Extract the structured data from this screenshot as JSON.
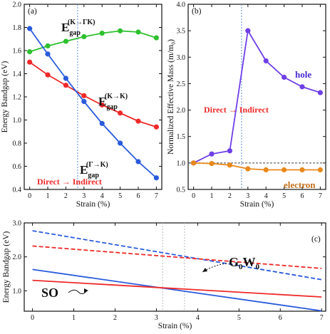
{
  "chart_data": [
    {
      "panel_label": "(a)",
      "type": "line",
      "xlabel": "Strain (%)",
      "ylabel": "Energy Bandgap (eV)",
      "xlim": [
        -0.3,
        7.3
      ],
      "ylim": [
        0.4,
        2.0
      ],
      "xticks": [
        0,
        1,
        2,
        3,
        4,
        5,
        6,
        7
      ],
      "yticks": [
        0.4,
        0.6,
        0.8,
        1.0,
        1.2,
        1.4,
        1.6,
        1.8,
        2.0
      ],
      "x": [
        0,
        1,
        2,
        3,
        4,
        5,
        6,
        7
      ],
      "series": [
        {
          "color": "#2ec02e",
          "values": [
            1.59,
            1.64,
            1.68,
            1.72,
            1.75,
            1.77,
            1.76,
            1.71
          ]
        },
        {
          "color": "#ee2a2a",
          "values": [
            1.5,
            1.39,
            1.3,
            1.21,
            1.13,
            1.06,
            0.99,
            0.94
          ]
        },
        {
          "color": "#2a5bdc",
          "values": [
            1.79,
            1.57,
            1.36,
            1.16,
            0.97,
            0.8,
            0.64,
            0.5
          ]
        }
      ],
      "vline_x": 2.65,
      "annotations": {
        "green": {
          "base": "E",
          "sub": "gap",
          "sup": "(K→ΓK)"
        },
        "red": {
          "base": "E",
          "sub": "gap",
          "sup": "(K→K)"
        },
        "blue": {
          "base": "E",
          "sub": "gap",
          "sup": "(Γ→K)"
        },
        "transition": {
          "left": "Direct",
          "right": "Indirect"
        }
      }
    },
    {
      "panel_label": "(b)",
      "type": "line",
      "xlabel": "Strain (%)",
      "ylabel": "Normalized Effective Mass (m/m₀)",
      "xlim": [
        -0.3,
        7.3
      ],
      "ylim": [
        0.5,
        4.0
      ],
      "xticks": [
        0,
        1,
        2,
        3,
        4,
        5,
        6,
        7
      ],
      "yticks": [
        0.5,
        1.0,
        1.5,
        2.0,
        2.5,
        3.0,
        3.5,
        4.0
      ],
      "x": [
        0,
        1,
        2,
        3,
        4,
        5,
        6,
        7
      ],
      "series": [
        {
          "name": "hole",
          "color": "#6f3fe6",
          "values": [
            1.0,
            1.17,
            1.23,
            3.5,
            2.93,
            2.62,
            2.44,
            2.33
          ]
        },
        {
          "name": "electron",
          "color": "#e9891c",
          "values": [
            1.0,
            0.99,
            0.96,
            0.89,
            0.87,
            0.87,
            0.87,
            0.87
          ]
        }
      ],
      "hline_y": 1.0,
      "vline_x": 2.65,
      "annotations": {
        "hole": "hole",
        "electron": "electron",
        "transition": {
          "left": "Direct",
          "right": "Indirect"
        }
      }
    },
    {
      "panel_label": "(c)",
      "type": "line",
      "xlabel": "Strain (%)",
      "ylabel": "Energy Bandgap (eV)",
      "xlim": [
        -0.2,
        7.1
      ],
      "ylim": [
        0.4,
        3.0
      ],
      "xticks": [
        0,
        1,
        2,
        3,
        4,
        5,
        6,
        7
      ],
      "yticks": [
        1.0,
        2.0,
        3.0
      ],
      "ytick_labels": [
        "1.0",
        "2.0",
        "3.0"
      ],
      "series": [
        {
          "color": "#2a5bdc",
          "dashed": true,
          "x": [
            0,
            7
          ],
          "values": [
            2.77,
            1.33
          ]
        },
        {
          "color": "#ee2a2a",
          "dashed": true,
          "x": [
            0,
            7
          ],
          "values": [
            2.32,
            1.66
          ]
        },
        {
          "color": "#2a5bdc",
          "dashed": false,
          "x": [
            0,
            7
          ],
          "values": [
            1.63,
            0.41
          ]
        },
        {
          "color": "#ee2a2a",
          "dashed": false,
          "x": [
            0,
            7
          ],
          "values": [
            1.31,
            0.82
          ]
        }
      ],
      "vlines_x": [
        3.15,
        3.68
      ],
      "annotations": {
        "gw": {
          "base": "G",
          "sub1": "0",
          "mid": "W",
          "sub2": "0"
        },
        "so": "SO"
      }
    }
  ]
}
